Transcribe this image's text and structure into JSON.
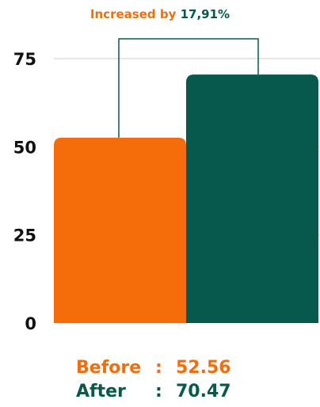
{
  "chart_data": {
    "type": "bar",
    "categories": [
      "Before",
      "After"
    ],
    "values": [
      52.56,
      70.47
    ],
    "colors": [
      "#f56d0a",
      "#07594c"
    ],
    "ylim": [
      0,
      80
    ],
    "yticks": [
      "0",
      "25",
      "50",
      "75"
    ],
    "grid": "horizontal",
    "annotation": {
      "prefix": "Increased by",
      "value": "17,91%"
    }
  },
  "summary": {
    "rows": [
      {
        "label": "Before",
        "separator": ":",
        "value": "52.56"
      },
      {
        "label": "After",
        "separator": ":",
        "value": "70.47"
      }
    ]
  },
  "colors": {
    "before": "#f56d0a",
    "after": "#07594c",
    "axis_text": "#111111",
    "grid": "#cfcfcf"
  }
}
